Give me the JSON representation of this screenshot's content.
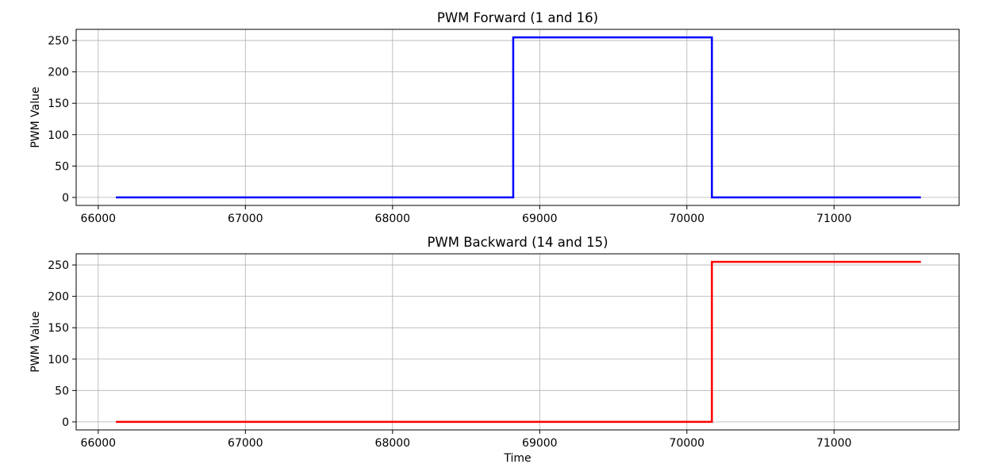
{
  "chart_data": [
    {
      "type": "line",
      "title": "PWM Forward (1 and 16)",
      "xlabel": "",
      "ylabel": "PWM Value",
      "xlim": [
        65850,
        71850
      ],
      "ylim": [
        -12.75,
        267.75
      ],
      "xticks": [
        66000,
        67000,
        68000,
        69000,
        70000,
        71000
      ],
      "yticks": [
        0,
        50,
        100,
        150,
        200,
        250
      ],
      "grid": true,
      "step": true,
      "series": [
        {
          "color": "#0000ff",
          "x": [
            66120,
            68820,
            68820,
            70170,
            70170,
            71590
          ],
          "y": [
            0,
            0,
            255,
            255,
            0,
            0
          ]
        }
      ]
    },
    {
      "type": "line",
      "title": "PWM Backward (14 and 15)",
      "xlabel": "Time",
      "ylabel": "PWM Value",
      "xlim": [
        65850,
        71850
      ],
      "ylim": [
        -12.75,
        267.75
      ],
      "xticks": [
        66000,
        67000,
        68000,
        69000,
        70000,
        71000
      ],
      "yticks": [
        0,
        50,
        100,
        150,
        200,
        250
      ],
      "grid": true,
      "step": true,
      "series": [
        {
          "color": "#ff0000",
          "x": [
            66120,
            70170,
            70170,
            71590
          ],
          "y": [
            0,
            0,
            255,
            255
          ]
        }
      ]
    }
  ]
}
